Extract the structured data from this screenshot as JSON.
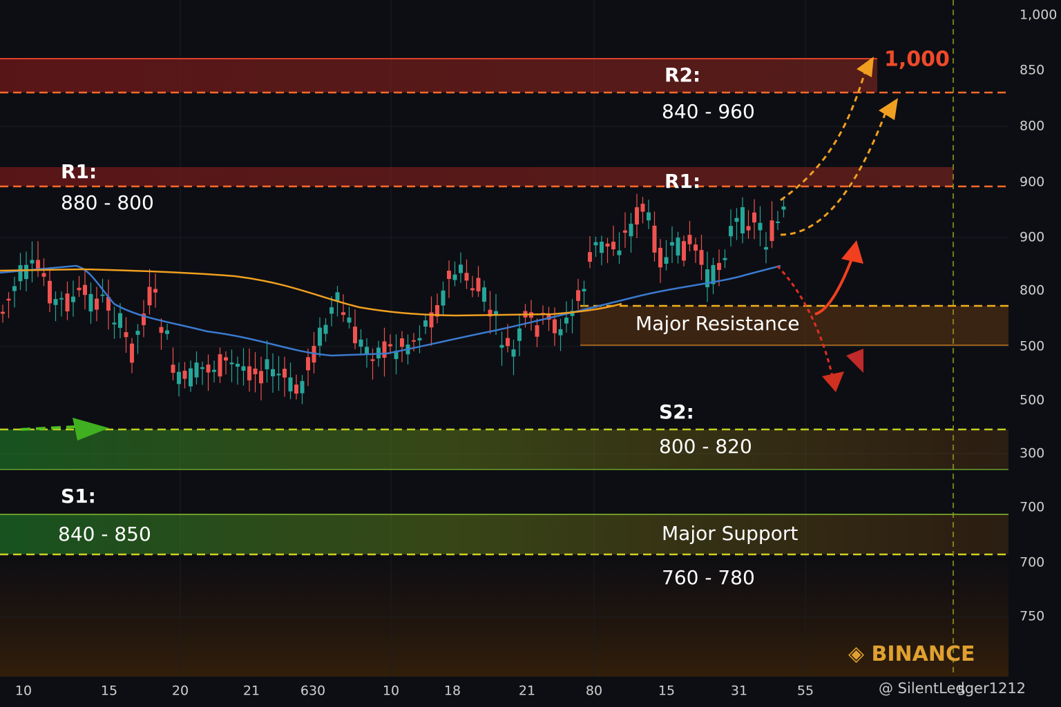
{
  "y_axis_labels": [
    "1,000",
    "850",
    "800",
    "900",
    "900",
    "800",
    "500",
    "500",
    "300",
    "700",
    "700",
    "750"
  ],
  "x_axis_labels": [
    "10",
    "15",
    "20",
    "21",
    "630",
    "10",
    "18",
    "21",
    "80",
    "15",
    "31",
    "55",
    "5"
  ],
  "zones": [
    {
      "label": "R2:",
      "range": "840 - 960"
    },
    {
      "label": "R1:",
      "range": "880 - 800"
    },
    {
      "label": "R1:"
    },
    {
      "label": "Major Resistance"
    },
    {
      "label": "S2:",
      "range": "800 - 820"
    },
    {
      "label": "S1:",
      "range": "840 - 850"
    },
    {
      "label": "Major Support",
      "range": "760 - 780"
    }
  ],
  "target_label": "1,000",
  "brand": "BINANCE",
  "watermark": "@ SilentLedger1212"
}
